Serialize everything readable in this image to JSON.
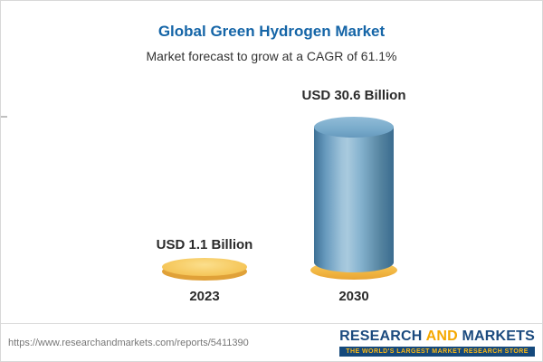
{
  "header": {
    "title": "Global Green Hydrogen Market",
    "subtitle": "Market forecast to grow at a CAGR of 61.1%"
  },
  "chart_data": {
    "type": "bar",
    "style": "3d-cylinder",
    "categories": [
      "2023",
      "2030"
    ],
    "values": [
      1.1,
      30.6
    ],
    "value_labels": [
      "USD 1.1 Billion",
      "USD 30.6 Billion"
    ],
    "unit": "USD Billion",
    "cagr": "61.1%",
    "title": "Global Green Hydrogen Market",
    "subtitle": "Market forecast to grow at a CAGR of 61.1%",
    "xlabel": "",
    "ylabel": "",
    "ylim": [
      0,
      35
    ],
    "grid": false,
    "legend": "none",
    "colors": {
      "bar_2023": "#f6c95f",
      "bar_2030": "#6699bd",
      "bar_2030_base": "#f2b844",
      "title": "#1565a7",
      "label_text": "#2b2b2b"
    }
  },
  "footer": {
    "url": "https://www.researchandmarkets.com/reports/5411390",
    "logo": {
      "word1": "RESEARCH",
      "word2": "AND",
      "word3": "MARKETS",
      "tagline": "THE WORLD'S LARGEST MARKET RESEARCH STORE"
    }
  }
}
